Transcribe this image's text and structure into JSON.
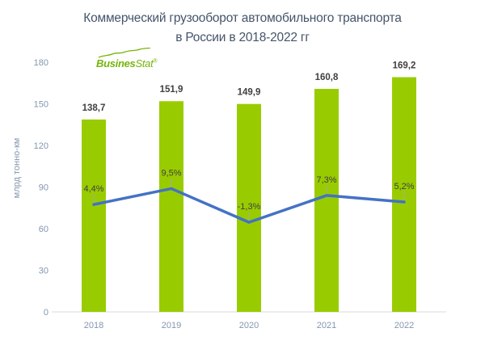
{
  "header": {
    "title_line1": "Коммерческий грузооборот автомобильного транспорта",
    "title_line2": "в России в 2018-2022 гг",
    "title_color": "#44546A"
  },
  "logo": {
    "text_bold": "Busines",
    "text_italic": "Stat",
    "registered_mark": "®",
    "color": "#76B409"
  },
  "chart_data": {
    "type": "bar",
    "overlay_type": "line",
    "title": "Коммерческий грузооборот автомобильного транспорта в России в 2018-2022 гг",
    "categories": [
      "2018",
      "2019",
      "2020",
      "2021",
      "2022"
    ],
    "series": [
      {
        "kind": "bar",
        "values": [
          138.7,
          151.9,
          149.9,
          160.8,
          169.2
        ],
        "labels": [
          "138,7",
          "151,9",
          "149,9",
          "160,8",
          "169,2"
        ],
        "color": "#99CC00"
      },
      {
        "kind": "line",
        "values": [
          4.4,
          9.5,
          -1.3,
          7.3,
          5.2
        ],
        "labels": [
          "4,4%",
          "9,5%",
          "-1,3%",
          "7,3%",
          "5,2%"
        ],
        "color": "#4472C4"
      }
    ],
    "xlabel": "",
    "ylabel": "млрд тонно-км",
    "ylim": [
      0,
      180
    ],
    "yticks": [
      0,
      30,
      60,
      90,
      120,
      150,
      180
    ],
    "secondary_ylim": [
      -30,
      50
    ],
    "grid": false,
    "legend": "none",
    "colors": {
      "axis_text": "#8496B0",
      "value_label": "#404040",
      "percent_label": "#404040",
      "axis_line": "#D9D9D9",
      "leader_tick": "#A6A6A6"
    }
  }
}
